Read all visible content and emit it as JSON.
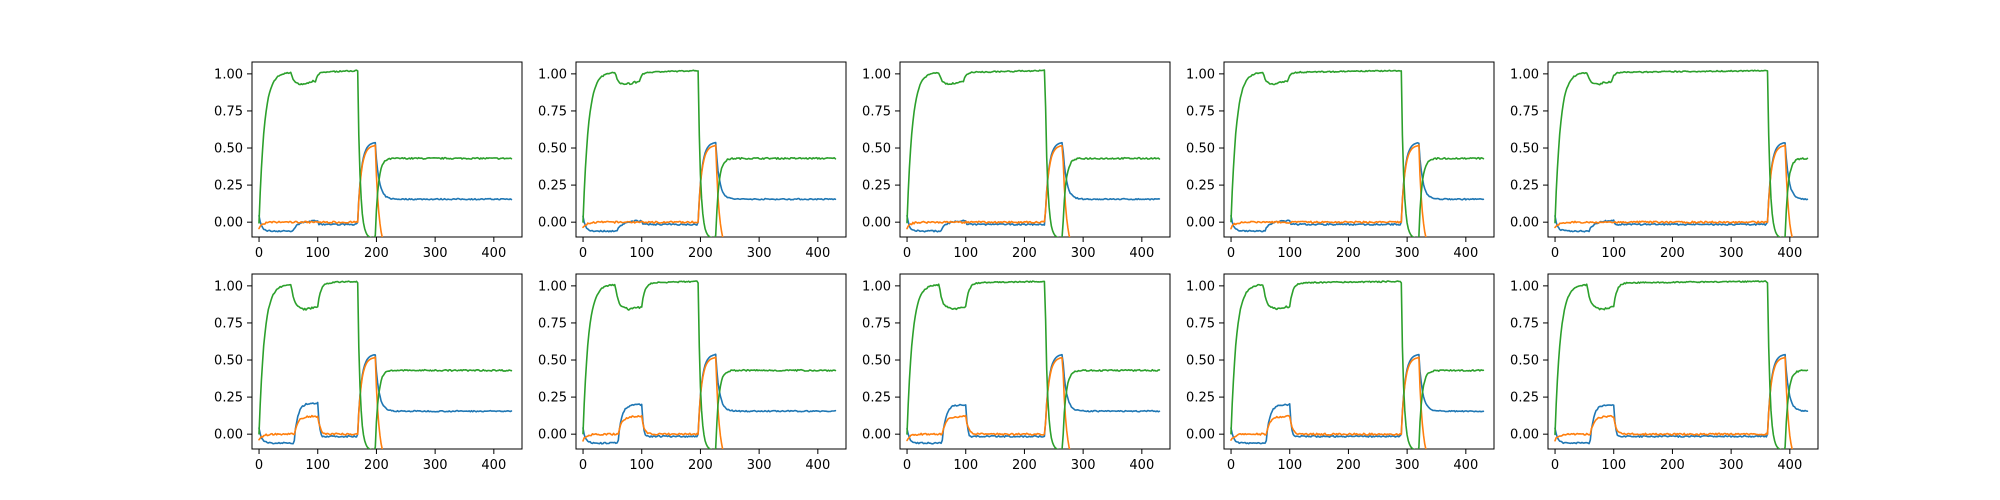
{
  "chart_data": {
    "type": "line",
    "layout": "2 rows x 5 columns of line panels",
    "xlim": [
      -12,
      448
    ],
    "ylim": [
      -0.1,
      1.08
    ],
    "x_ticks": [
      0,
      100,
      200,
      300,
      400
    ],
    "x_tick_labels": [
      "0",
      "100",
      "200",
      "300",
      "400"
    ],
    "y_ticks": [
      0.0,
      0.25,
      0.5,
      0.75,
      1.0
    ],
    "y_tick_labels": [
      "0.00",
      "0.25",
      "0.50",
      "0.75",
      "1.00"
    ],
    "grid": false,
    "legend": "none",
    "series_colors": [
      "#1f77b4",
      "#ff7f0e",
      "#2ca02c"
    ],
    "series_names": [
      "",
      "",
      ""
    ],
    "x_end": 430,
    "panels": [
      {
        "row": 0,
        "col": 0,
        "switch_x": 168,
        "bump": 0.05,
        "orange_bump": 0.0
      },
      {
        "row": 0,
        "col": 1,
        "switch_x": 196,
        "bump": 0.05,
        "orange_bump": 0.0
      },
      {
        "row": 0,
        "col": 2,
        "switch_x": 235,
        "bump": 0.05,
        "orange_bump": 0.0
      },
      {
        "row": 0,
        "col": 3,
        "switch_x": 290,
        "bump": 0.05,
        "orange_bump": 0.0
      },
      {
        "row": 0,
        "col": 4,
        "switch_x": 362,
        "bump": 0.05,
        "orange_bump": 0.0
      },
      {
        "row": 1,
        "col": 0,
        "switch_x": 168,
        "bump": 0.25,
        "orange_bump": 0.12
      },
      {
        "row": 1,
        "col": 1,
        "switch_x": 196,
        "bump": 0.24,
        "orange_bump": 0.12
      },
      {
        "row": 1,
        "col": 2,
        "switch_x": 235,
        "bump": 0.24,
        "orange_bump": 0.12
      },
      {
        "row": 1,
        "col": 3,
        "switch_x": 290,
        "bump": 0.24,
        "orange_bump": 0.12
      },
      {
        "row": 1,
        "col": 4,
        "switch_x": 362,
        "bump": 0.24,
        "orange_bump": 0.12
      }
    ]
  }
}
